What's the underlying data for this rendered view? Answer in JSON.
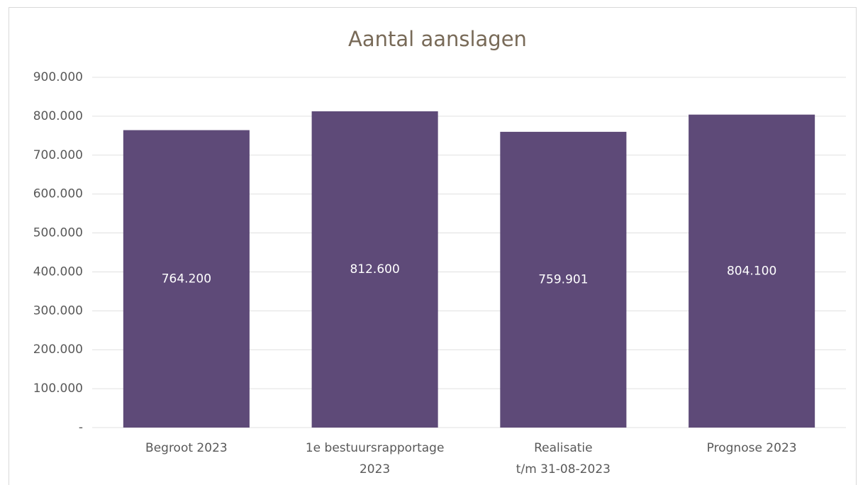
{
  "chart_data": {
    "type": "bar",
    "title": "Aantal aanslagen",
    "categories": [
      "Begroot 2023",
      "1e bestuursrapportage\n2023",
      "Realisatie\nt/m 31-08-2023",
      "Prognose 2023"
    ],
    "values": [
      764200,
      812600,
      759901,
      804100
    ],
    "value_labels": [
      "764.200",
      "812.600",
      "759.901",
      "804.100"
    ],
    "color": "#5e4a78",
    "ylim": [
      0,
      900000
    ],
    "yticks": [
      {
        "value": 0,
        "label": "-"
      },
      {
        "value": 100000,
        "label": "100.000"
      },
      {
        "value": 200000,
        "label": "200.000"
      },
      {
        "value": 300000,
        "label": "300.000"
      },
      {
        "value": 400000,
        "label": "400.000"
      },
      {
        "value": 500000,
        "label": "500.000"
      },
      {
        "value": 600000,
        "label": "600.000"
      },
      {
        "value": 700000,
        "label": "700.000"
      },
      {
        "value": 800000,
        "label": "800.000"
      },
      {
        "value": 900000,
        "label": "900.000"
      }
    ],
    "grid": true
  }
}
